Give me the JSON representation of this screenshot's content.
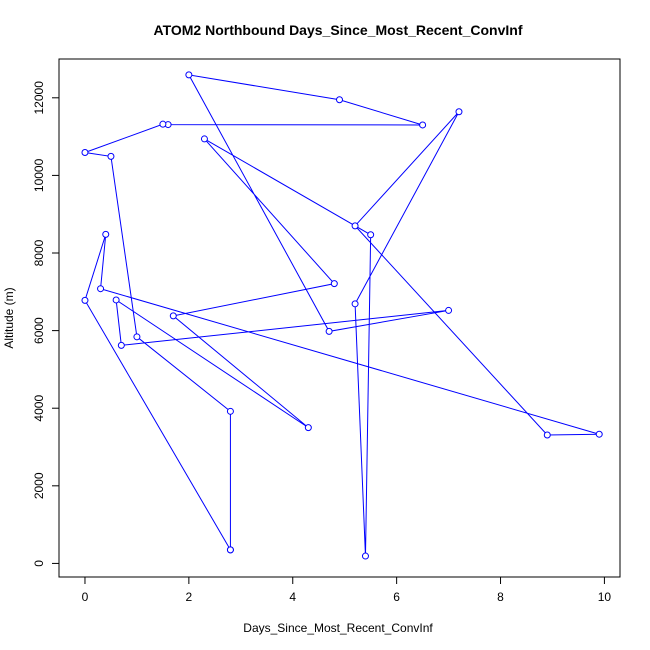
{
  "chart_data": {
    "type": "line",
    "title": "ATOM2 Northbound Days_Since_Most_Recent_ConvInf",
    "xlabel": "Days_Since_Most_Recent_ConvInf",
    "ylabel": "Altitude (m)",
    "xlim": [
      -0.5,
      10.3
    ],
    "ylim": [
      -350,
      13000
    ],
    "x_ticks": [
      0,
      2,
      4,
      6,
      8,
      10
    ],
    "y_ticks": [
      0,
      2000,
      4000,
      6000,
      8000,
      10000,
      12000
    ],
    "x_tick_labels": [
      "0",
      "2",
      "4",
      "6",
      "8",
      "10"
    ],
    "y_tick_labels": [
      "0",
      "2000",
      "4000",
      "6000",
      "8000",
      "10000",
      "12000"
    ],
    "grid": false,
    "marker": "open-circle",
    "series": [
      {
        "color": "#0000ff",
        "points": [
          {
            "x": 2.8,
            "y": 350
          },
          {
            "x": 0.0,
            "y": 6780
          },
          {
            "x": 0.4,
            "y": 8480
          },
          {
            "x": 0.3,
            "y": 7080
          },
          {
            "x": 9.9,
            "y": 3330
          },
          {
            "x": 8.9,
            "y": 3310
          },
          {
            "x": 5.2,
            "y": 8700
          },
          {
            "x": 7.2,
            "y": 11640
          },
          {
            "x": 5.2,
            "y": 6690
          },
          {
            "x": 5.4,
            "y": 190
          },
          {
            "x": 5.5,
            "y": 8470
          },
          {
            "x": 2.3,
            "y": 10940
          },
          {
            "x": 4.8,
            "y": 7210
          },
          {
            "x": 1.7,
            "y": 6380
          },
          {
            "x": 4.3,
            "y": 3500
          },
          {
            "x": 0.6,
            "y": 6790
          },
          {
            "x": 0.7,
            "y": 5620
          },
          {
            "x": 7.0,
            "y": 6520
          },
          {
            "x": 4.7,
            "y": 5980
          },
          {
            "x": 2.0,
            "y": 12590
          },
          {
            "x": 4.9,
            "y": 11950
          },
          {
            "x": 6.5,
            "y": 11300
          },
          {
            "x": 1.6,
            "y": 11310
          },
          {
            "x": 1.5,
            "y": 11320
          },
          {
            "x": 0.0,
            "y": 10590
          },
          {
            "x": 0.5,
            "y": 10490
          },
          {
            "x": 1.0,
            "y": 5840
          },
          {
            "x": 2.8,
            "y": 3920
          },
          {
            "x": 2.8,
            "y": 350
          }
        ]
      }
    ]
  }
}
